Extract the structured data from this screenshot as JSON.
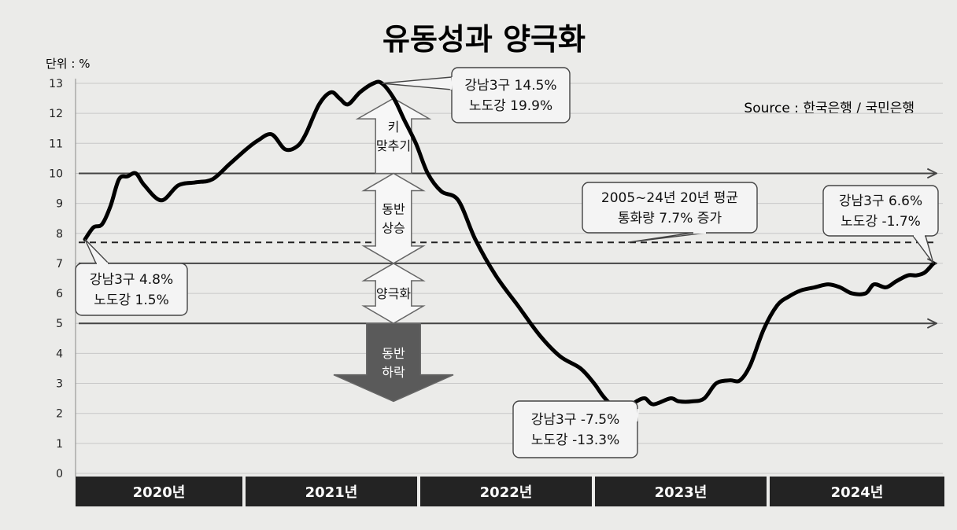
{
  "chart_data": {
    "type": "line",
    "title": "유동성과 양극화",
    "unit_label": "단위 : %",
    "source": "Source : 한국은행 / 국민은행",
    "ylim": [
      0,
      13
    ],
    "y_ticks": [
      0,
      1,
      2,
      3,
      4,
      5,
      6,
      7,
      8,
      9,
      10,
      11,
      12,
      13
    ],
    "grid": "horizontal",
    "x_range": [
      2020.0,
      2025.0
    ],
    "year_labels": [
      "2020년",
      "2021년",
      "2022년",
      "2023년",
      "2024년"
    ],
    "series": [
      {
        "x": [
          2020.0,
          2020.05,
          2020.1,
          2020.15,
          2020.2,
          2020.25,
          2020.3,
          2020.35,
          2020.45,
          2020.55,
          2020.65,
          2020.75,
          2020.85,
          2020.95,
          2021.02,
          2021.1,
          2021.18,
          2021.25,
          2021.3,
          2021.38,
          2021.45,
          2021.5,
          2021.55,
          2021.62,
          2021.7,
          2021.75,
          2021.82,
          2021.88,
          2021.95,
          2022.02,
          2022.1,
          2022.2,
          2022.3,
          2022.42,
          2022.55,
          2022.68,
          2022.8,
          2022.92,
          2023.0,
          2023.05,
          2023.1,
          2023.15,
          2023.2,
          2023.25,
          2023.3,
          2023.35,
          2023.45,
          2023.5,
          2023.58,
          2023.65,
          2023.72,
          2023.8,
          2023.86,
          2023.92,
          2024.0,
          2024.08,
          2024.15,
          2024.22,
          2024.3,
          2024.38,
          2024.45,
          2024.52,
          2024.6,
          2024.65,
          2024.72,
          2024.78,
          2024.85,
          2024.9,
          2024.95,
          2025.0
        ],
        "y": [
          7.8,
          8.2,
          8.3,
          8.9,
          9.8,
          9.9,
          10.0,
          9.6,
          9.1,
          9.6,
          9.7,
          9.8,
          10.3,
          10.8,
          11.1,
          11.3,
          10.8,
          10.9,
          11.3,
          12.3,
          12.7,
          12.5,
          12.3,
          12.7,
          13.0,
          13.0,
          12.5,
          11.8,
          11.0,
          10.0,
          9.4,
          9.1,
          7.8,
          6.6,
          5.6,
          4.6,
          3.9,
          3.5,
          3.0,
          2.6,
          2.3,
          2.2,
          2.2,
          2.4,
          2.5,
          2.3,
          2.5,
          2.4,
          2.4,
          2.5,
          3.0,
          3.1,
          3.1,
          3.6,
          4.8,
          5.6,
          5.9,
          6.1,
          6.2,
          6.3,
          6.2,
          6.0,
          6.0,
          6.3,
          6.2,
          6.4,
          6.6,
          6.6,
          6.7,
          7.0
        ]
      }
    ],
    "reference_lines": [
      {
        "y": 10,
        "style": "solid-arrow"
      },
      {
        "y": 7,
        "style": "solid-arrow"
      },
      {
        "y": 5,
        "style": "solid-arrow"
      },
      {
        "y": 7.7,
        "style": "dashed"
      }
    ],
    "band_arrows": [
      {
        "lines": [
          "키",
          "맞추기"
        ],
        "direction": "up",
        "from": 10,
        "to": 12.5,
        "fill": "#f7f7f7"
      },
      {
        "lines": [
          "동반",
          "상승"
        ],
        "direction": "both",
        "from": 7,
        "to": 10,
        "fill": "#f7f7f7"
      },
      {
        "lines": [
          "양극화"
        ],
        "direction": "both",
        "from": 5,
        "to": 7,
        "fill": "#f7f7f7"
      },
      {
        "lines": [
          "동반",
          "하락"
        ],
        "direction": "down",
        "from": 2.4,
        "to": 5,
        "fill": "#5a5a5a"
      }
    ],
    "callouts": [
      {
        "lines": [
          "강남3구 4.8%",
          "노도강 1.5%"
        ],
        "point_x": 2020.0,
        "point_y": 7.8
      },
      {
        "lines": [
          "강남3구 14.5%",
          "노도강 19.9%"
        ],
        "point_x": 2021.75,
        "point_y": 13.0
      },
      {
        "lines": [
          "2005~24년 20년 평균",
          "통화량 7.7% 증가"
        ],
        "point_x": 2023.2,
        "point_y": 7.7
      },
      {
        "lines": [
          "강남3구 -7.5%",
          "노도강 -13.3%"
        ],
        "point_x": 2023.15,
        "point_y": 2.2
      },
      {
        "lines": [
          "강남3구 6.6%",
          "노도강 -1.7%"
        ],
        "point_x": 2025.0,
        "point_y": 7.0
      }
    ],
    "colors": {
      "line": "#000000",
      "grid": "#c8c8c8",
      "year_bar": "#232323",
      "year_text": "#ffffff",
      "reference": "#444444"
    }
  }
}
